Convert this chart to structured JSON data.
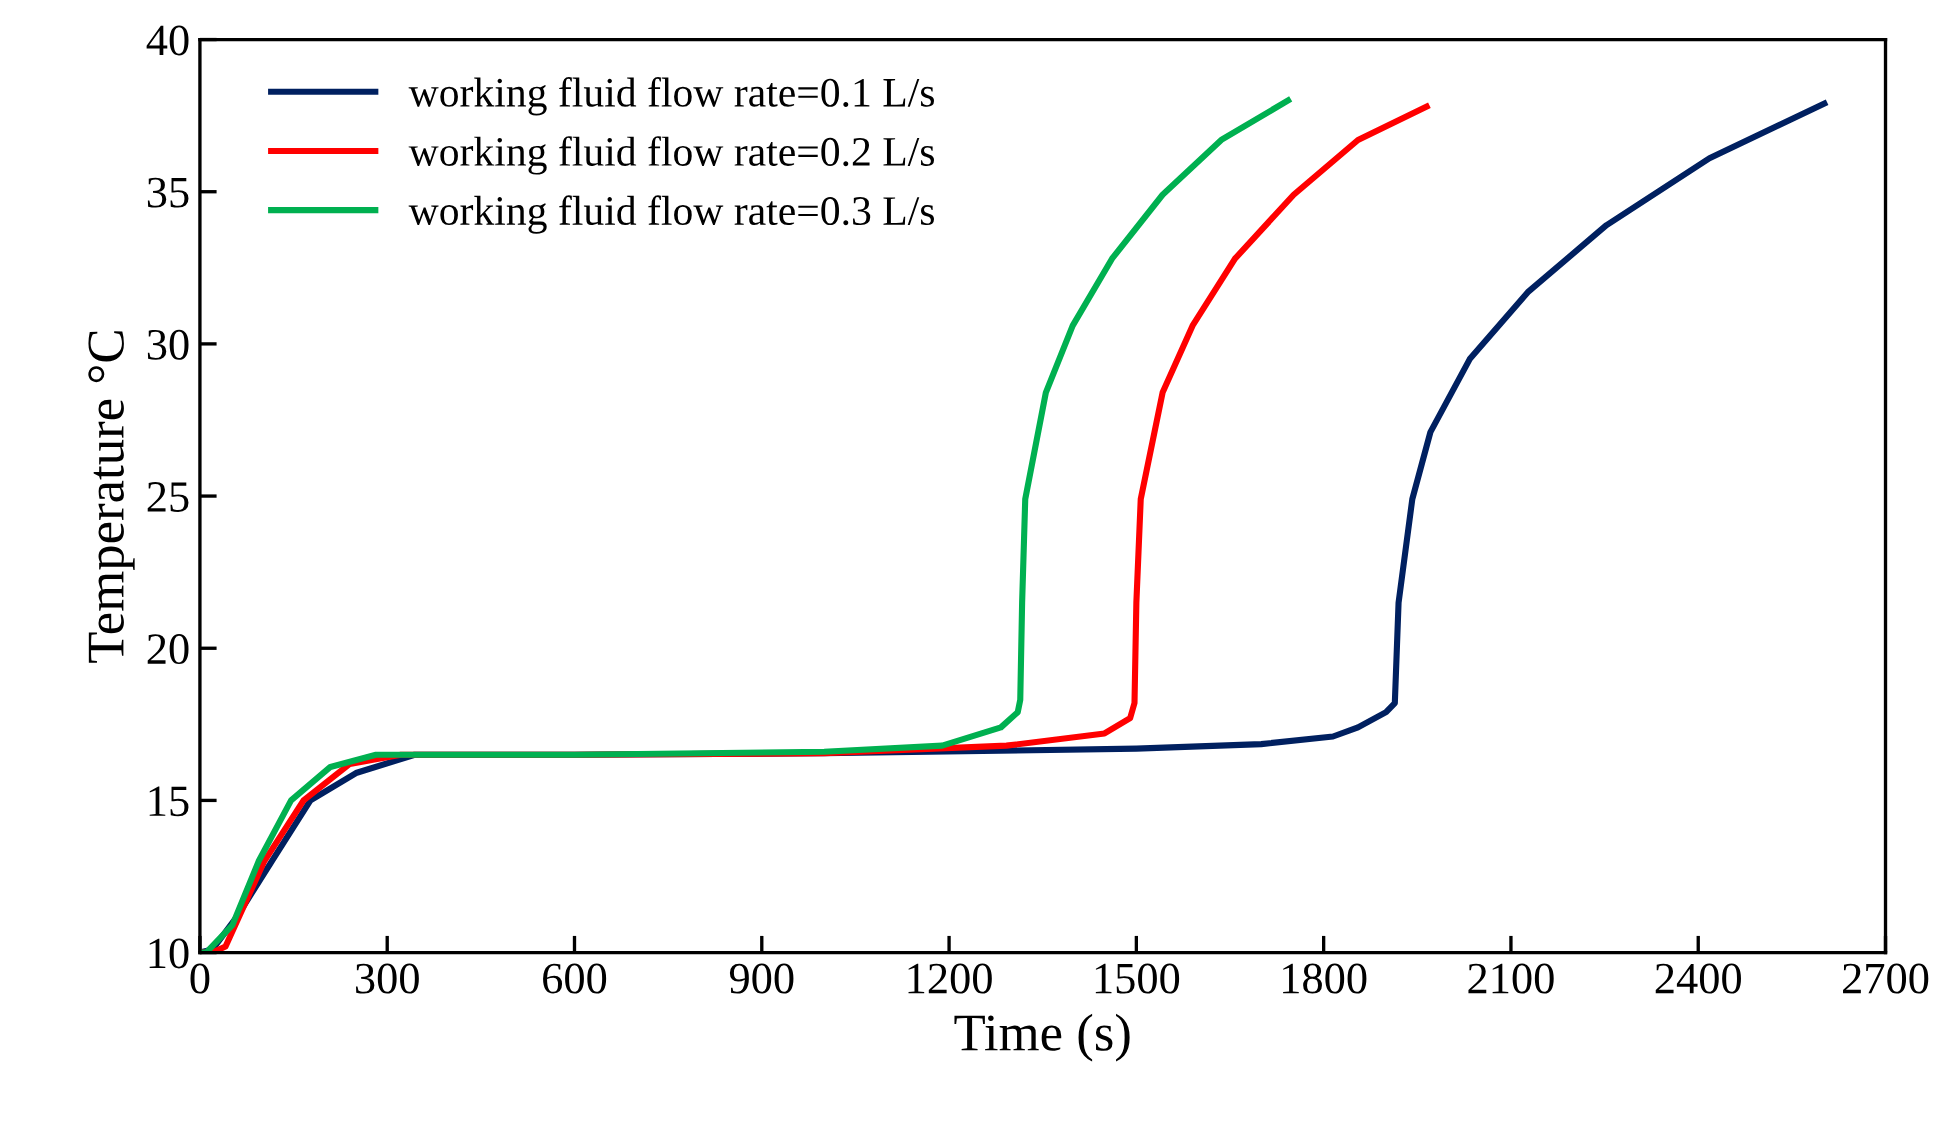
{
  "chart_data": {
    "type": "line",
    "xlabel": "Time (s)",
    "ylabel": "Temperature °C",
    "xlim": [
      0,
      2700
    ],
    "ylim": [
      10,
      40
    ],
    "xticks": [
      0,
      300,
      600,
      900,
      1200,
      1500,
      1800,
      2100,
      2400,
      2700
    ],
    "yticks": [
      10,
      15,
      20,
      25,
      30,
      35,
      40
    ],
    "grid": false,
    "legend": "top left",
    "marker": "none",
    "line_style": "solid",
    "series": [
      {
        "name": "working fluid flow rate=0.1 L/s",
        "color": "#002060",
        "x": [
          0,
          20,
          60,
          115,
          177,
          250,
          344,
          600,
          1000,
          1500,
          1700,
          1815,
          1855,
          1900,
          1914,
          1920,
          1942,
          1971,
          2034,
          2127,
          2253,
          2418,
          2602
        ],
        "values": [
          10,
          10.1,
          11.2,
          13.0,
          15.0,
          15.9,
          16.5,
          16.5,
          16.55,
          16.7,
          16.85,
          17.1,
          17.4,
          17.9,
          18.2,
          21.5,
          24.9,
          27.1,
          29.5,
          31.7,
          33.9,
          36.1,
          37.9
        ]
      },
      {
        "name": "working fluid flow rate=0.2 L/s",
        "color": "#ff0000",
        "x": [
          0,
          20,
          41,
          103,
          166,
          240,
          322,
          600,
          1000,
          1292,
          1449,
          1490,
          1497,
          1500,
          1507,
          1542,
          1590,
          1658,
          1752,
          1855,
          1965
        ],
        "values": [
          10,
          10,
          10.2,
          13.0,
          15.0,
          16.2,
          16.5,
          16.5,
          16.55,
          16.8,
          17.2,
          17.7,
          18.2,
          21.5,
          24.9,
          28.4,
          30.6,
          32.8,
          34.9,
          36.7,
          37.8
        ]
      },
      {
        "name": "working fluid flow rate=0.3 L/s",
        "color": "#00b050",
        "x": [
          0,
          10,
          52,
          94,
          146,
          209,
          282,
          600,
          1000,
          1189,
          1283,
          1310,
          1314,
          1317,
          1322,
          1355,
          1398,
          1461,
          1542,
          1636,
          1743
        ],
        "values": [
          10,
          10,
          10.9,
          13.0,
          15.0,
          16.1,
          16.5,
          16.5,
          16.6,
          16.8,
          17.4,
          17.9,
          18.3,
          21.5,
          24.9,
          28.4,
          30.6,
          32.8,
          34.9,
          36.7,
          38.0
        ]
      }
    ]
  }
}
